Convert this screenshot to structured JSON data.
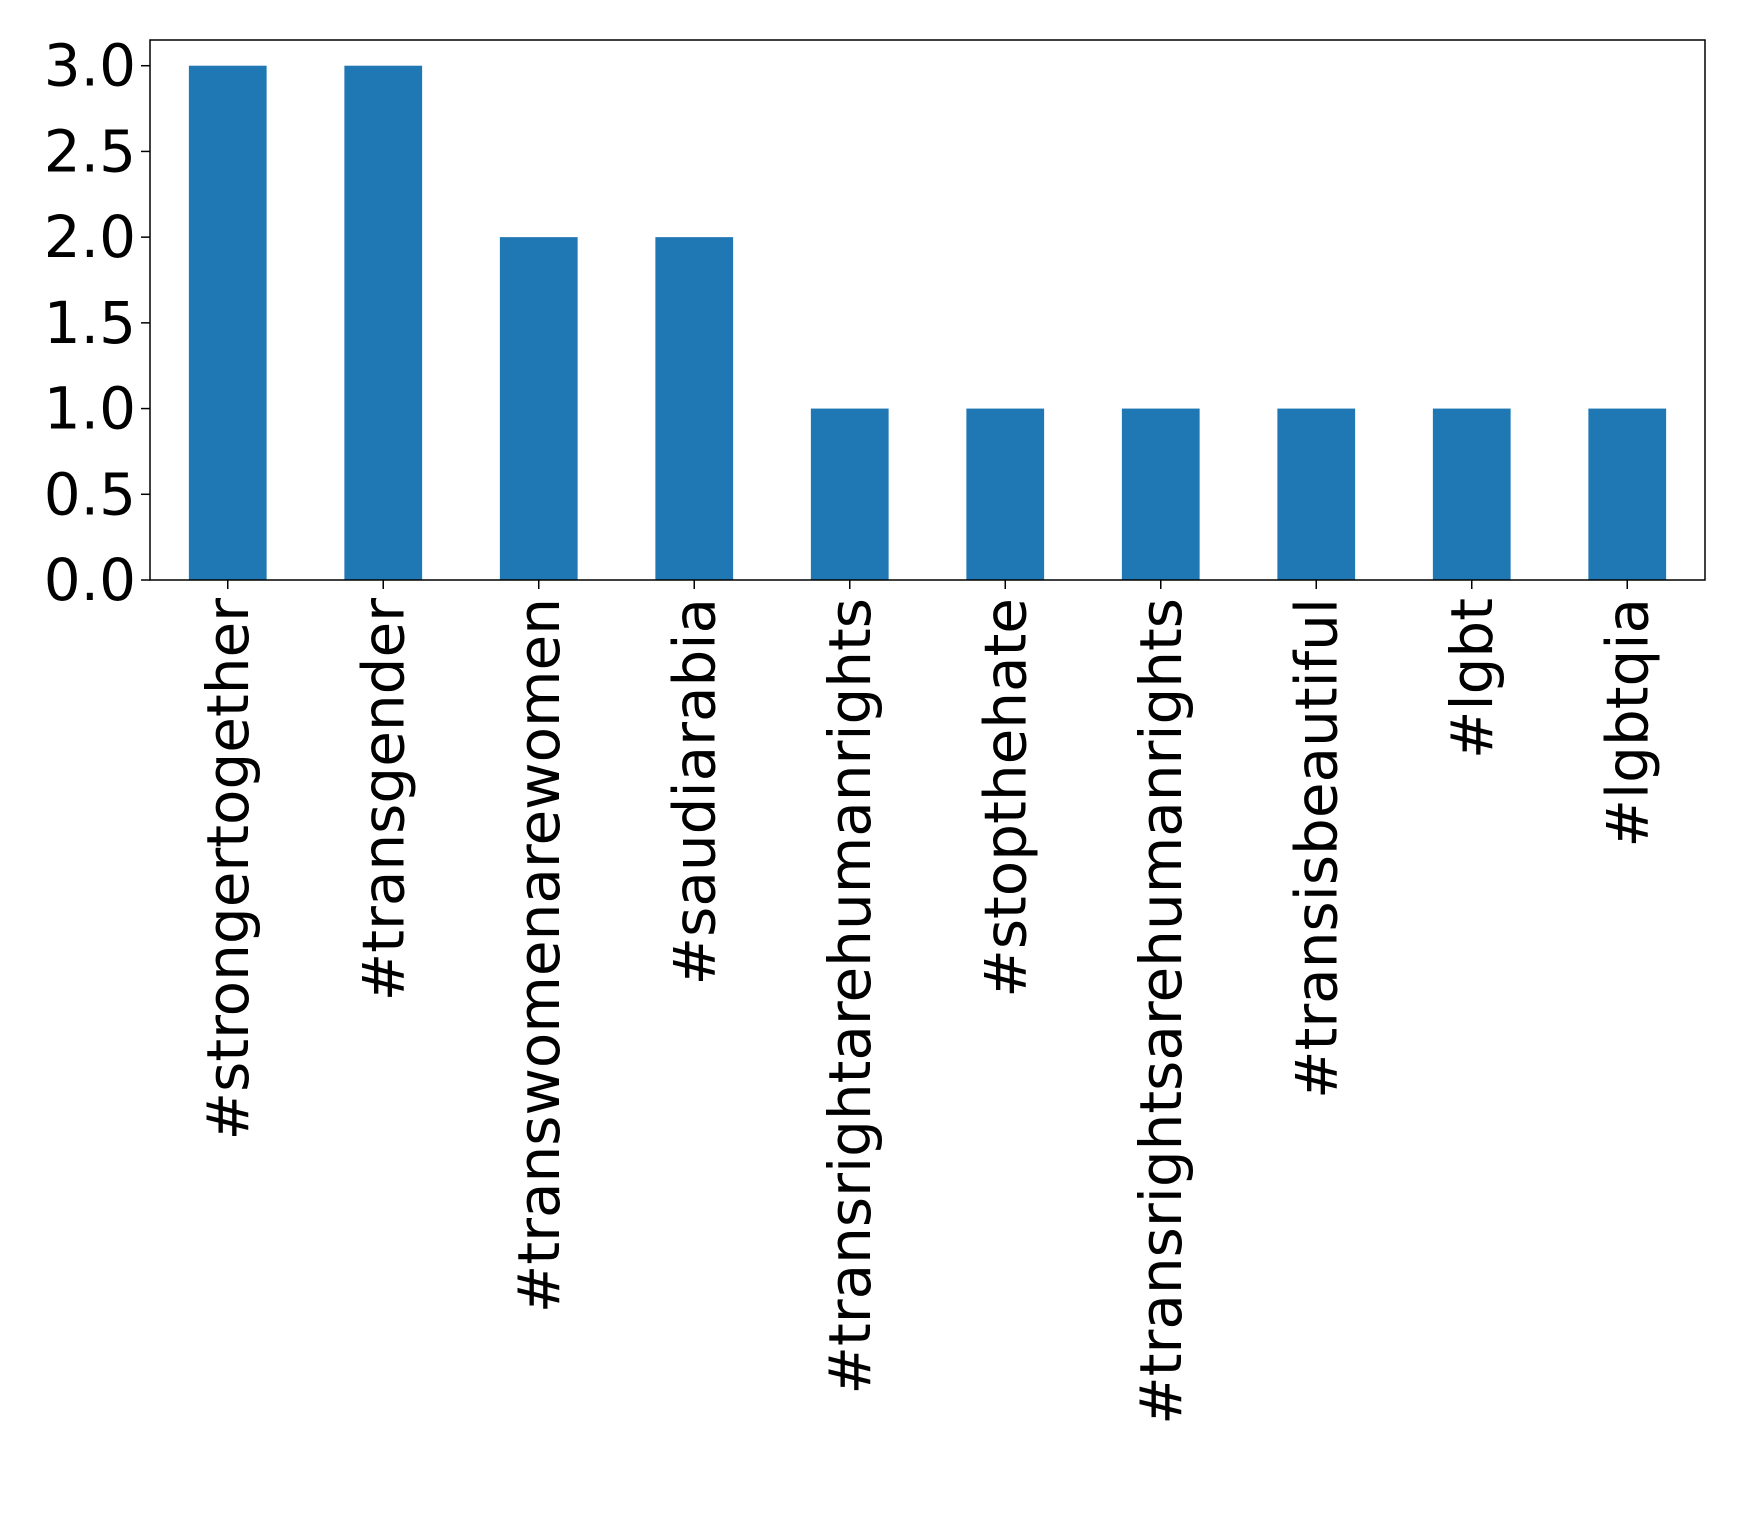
{
  "chart_data": {
    "type": "bar",
    "categories": [
      "#strongertogether",
      "#transgender",
      "#transwomenarewomen",
      "#saudiarabia",
      "#transrightarehumanrights",
      "#stopthehate",
      "#transrightsarehumanrights",
      "#transisbeautiful",
      "#lgbt",
      "#lgbtqia"
    ],
    "values": [
      3,
      3,
      2,
      2,
      1,
      1,
      1,
      1,
      1,
      1
    ],
    "title": "",
    "xlabel": "",
    "ylabel": "",
    "ylim": [
      0,
      3.15
    ],
    "yticks": [
      "0.0",
      "0.5",
      "1.0",
      "1.5",
      "2.0",
      "2.5",
      "3.0"
    ],
    "grid": false,
    "bar_color": "#1f77b4",
    "x_tick_rotation": "vertical"
  }
}
